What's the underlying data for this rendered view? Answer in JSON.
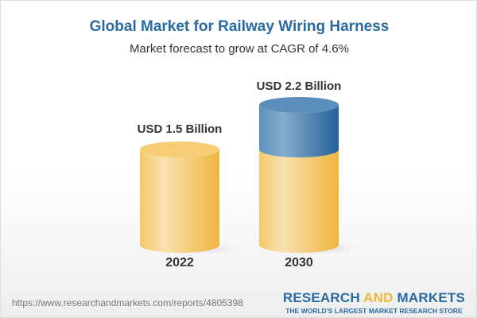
{
  "title": "Global Market for Railway Wiring Harness",
  "subtitle": "Market forecast to grow at CAGR of 4.6%",
  "chart_data": {
    "type": "bar",
    "style": "3d-cylinder",
    "categories": [
      "2022",
      "2030"
    ],
    "values": [
      1.5,
      2.2
    ],
    "data_labels": [
      "USD 1.5 Billion",
      "USD 2.2 Billion"
    ],
    "unit": "USD Billion",
    "base_color": "#f3c55e",
    "growth_color": "#3d7bb0",
    "grid": false
  },
  "footer": {
    "url": "https://www.researchandmarkets.com/reports/4805398",
    "logo_part1": "RESEARCH",
    "logo_part2": "AND",
    "logo_part3": "MARKETS",
    "logo_tagline": "THE WORLD'S LARGEST MARKET RESEARCH STORE"
  }
}
